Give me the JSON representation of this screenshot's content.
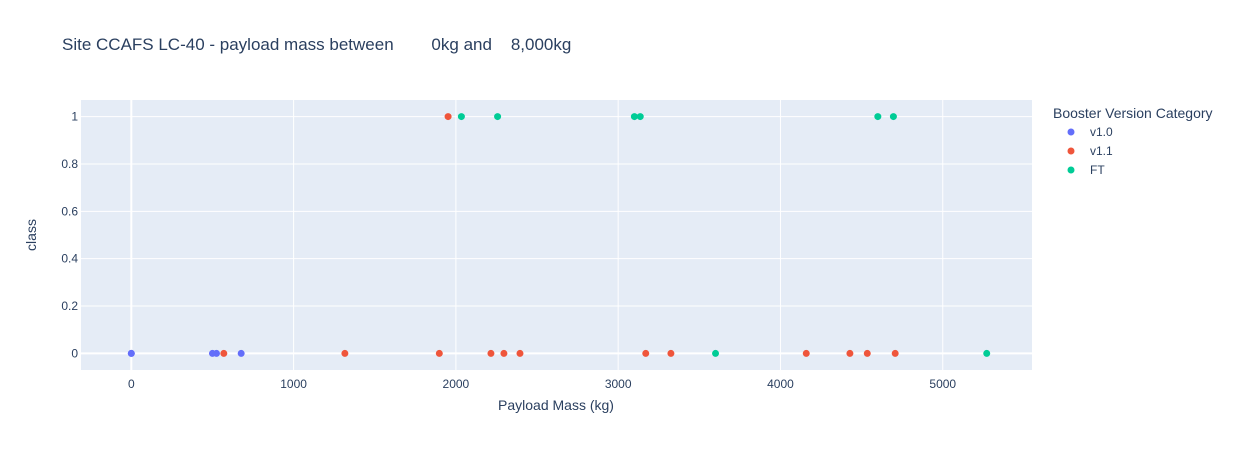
{
  "chart_data": {
    "type": "scatter",
    "title": "Site CCAFS LC-40 - payload mass between        0kg and    8,000kg",
    "xlabel": "Payload Mass (kg)",
    "ylabel": "class",
    "xlim": [
      -310,
      5550
    ],
    "ylim": [
      -0.07,
      1.07
    ],
    "xticks": [
      0,
      1000,
      2000,
      3000,
      4000,
      5000
    ],
    "xtick_labels": [
      "0",
      "1000",
      "2000",
      "3000",
      "4000",
      "5000"
    ],
    "yticks": [
      0,
      0.2,
      0.4,
      0.6,
      0.8,
      1
    ],
    "ytick_labels": [
      "0",
      "0.2",
      "0.4",
      "0.6",
      "0.8",
      "1"
    ],
    "grid": true,
    "legend": {
      "title": "Booster Version Category",
      "position": "right"
    },
    "series": [
      {
        "name": "v1.0",
        "color": "#636efa",
        "points": [
          {
            "x": 0,
            "y": 0
          },
          {
            "x": 0,
            "y": 0
          },
          {
            "x": 500,
            "y": 0
          },
          {
            "x": 525,
            "y": 0
          },
          {
            "x": 677,
            "y": 0
          }
        ]
      },
      {
        "name": "v1.1",
        "color": "#ef553b",
        "points": [
          {
            "x": 570,
            "y": 0
          },
          {
            "x": 1316,
            "y": 0
          },
          {
            "x": 1898,
            "y": 0
          },
          {
            "x": 1952,
            "y": 1
          },
          {
            "x": 2216,
            "y": 0
          },
          {
            "x": 2296,
            "y": 0
          },
          {
            "x": 2395,
            "y": 0
          },
          {
            "x": 3170,
            "y": 0
          },
          {
            "x": 3325,
            "y": 0
          },
          {
            "x": 4159,
            "y": 0
          },
          {
            "x": 4428,
            "y": 0
          },
          {
            "x": 4535,
            "y": 0
          },
          {
            "x": 4707,
            "y": 0
          }
        ]
      },
      {
        "name": "FT",
        "color": "#00cc96",
        "points": [
          {
            "x": 2034,
            "y": 1
          },
          {
            "x": 2257,
            "y": 1
          },
          {
            "x": 3100,
            "y": 1
          },
          {
            "x": 3136,
            "y": 1
          },
          {
            "x": 3600,
            "y": 0
          },
          {
            "x": 4600,
            "y": 1
          },
          {
            "x": 4696,
            "y": 1
          },
          {
            "x": 5271,
            "y": 0
          }
        ]
      }
    ]
  },
  "colors": {
    "plot_background": "#e5ecf6",
    "gridline": "#ffffff",
    "text": "#2a3f5f"
  }
}
